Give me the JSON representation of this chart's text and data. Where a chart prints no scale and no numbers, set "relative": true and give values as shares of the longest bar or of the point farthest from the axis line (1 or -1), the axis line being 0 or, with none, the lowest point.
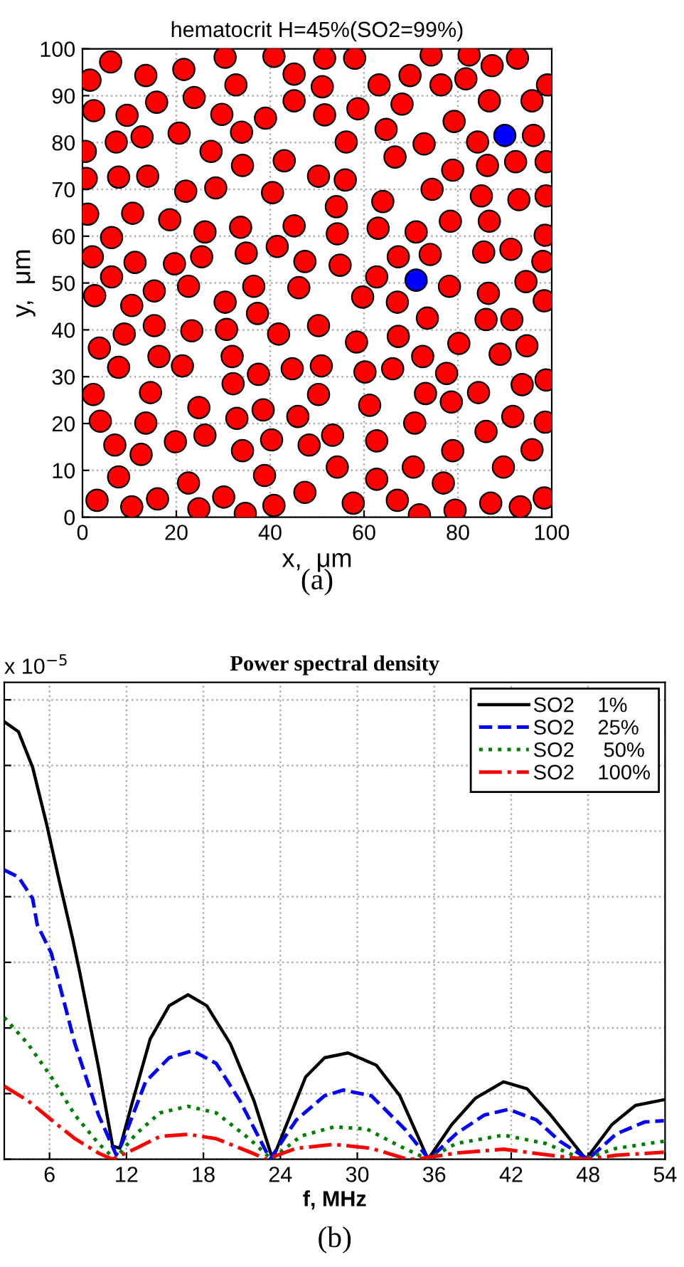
{
  "chart_data": [
    {
      "type": "scatter",
      "title": "hematocrit H=45%(SO2=99%)",
      "xlabel": "x,  μm",
      "ylabel": "y,  μm",
      "annotations": [
        "(a)"
      ],
      "xlim": [
        0,
        100
      ],
      "ylim": [
        0,
        100
      ],
      "xticks": [
        0,
        20,
        40,
        60,
        80,
        100
      ],
      "yticks": [
        0,
        10,
        20,
        30,
        40,
        50,
        60,
        70,
        80,
        90,
        100
      ],
      "grid": true,
      "marker": "circle",
      "series": [
        {
          "color": "#ff0000",
          "x": [
            1.6,
            6.0,
            13.5,
            21.6,
            30.4,
            40.8,
            45.1,
            51.6,
            58.0,
            63.2,
            69.8,
            74.3,
            76.4,
            82.4,
            81.7,
            87.3,
            92.7,
            99.1,
            32.7,
            51.1,
            2.4,
            9.5,
            15.8,
            23.8,
            29.7,
            39.0,
            45.1,
            51.6,
            58.7,
            68.1,
            86.7,
            95.8,
            79.2,
            0.6,
            7.2,
            12.7,
            20.6,
            33.9,
            27.4,
            56.2,
            64.7,
            72.8,
            84.2,
            96.1,
            98.8,
            92.3,
            86.3,
            78.9,
            66.6,
            43.0,
            34.1,
            0.8,
            7.7,
            13.9,
            22.0,
            28.4,
            40.5,
            50.3,
            56.0,
            74.5,
            85.0,
            93.0,
            98.8,
            64.0,
            54.1,
            1.1,
            10.7,
            18.6,
            26.1,
            33.7,
            45.1,
            54.3,
            63.0,
            71.1,
            78.4,
            86.7,
            98.6,
            6.2,
            2.1,
            11.2,
            19.6,
            25.4,
            34.9,
            41.5,
            47.4,
            54.9,
            67.3,
            74.1,
            85.5,
            91.3,
            98.1,
            6.2,
            62.7,
            94.5,
            78.2,
            2.6,
            22.6,
            36.5,
            46.1,
            59.7,
            67.1,
            86.5,
            98.4,
            15.3,
            10.5,
            30.4,
            37.3,
            50.3,
            73.5,
            86.0,
            91.5,
            8.9,
            15.3,
            23.3,
            30.7,
            41.8,
            58.4,
            67.3,
            80.2,
            94.7,
            3.6,
            16.3,
            31.9,
            72.5,
            89.0,
            7.7,
            21.3,
            37.5,
            44.7,
            50.9,
            60.2,
            66.1,
            77.6,
            98.8,
            93.7,
            2.3,
            14.5,
            32.1,
            50.3,
            61.2,
            73.1,
            78.6,
            84.4,
            24.8,
            38.5,
            3.8,
            13.5,
            32.9,
            45.9,
            70.8,
            86.0,
            91.7,
            98.6,
            6.9,
            12.5,
            19.8,
            26.1,
            34.1,
            40.3,
            48.3,
            53.3,
            62.7,
            78.9,
            95.8,
            7.7,
            22.6,
            38.8,
            54.3,
            62.7,
            70.5,
            76.9,
            89.7,
            3.1,
            10.5,
            16.0,
            24.8,
            30.1,
            34.7,
            40.8,
            47.4,
            57.7,
            67.1,
            71.8,
            79.4,
            87.0,
            93.3,
            98.4
          ],
          "values": [
            93.3,
            97.2,
            94.3,
            95.6,
            98.2,
            98.4,
            94.6,
            98.0,
            98.0,
            92.3,
            94.3,
            98.7,
            92.3,
            98.7,
            93.6,
            96.4,
            98.0,
            92.3,
            92.3,
            91.9,
            86.8,
            85.8,
            88.6,
            89.6,
            86.0,
            85.2,
            88.9,
            85.9,
            87.2,
            88.2,
            88.9,
            88.9,
            84.5,
            78.1,
            80.1,
            81.2,
            82.0,
            82.2,
            78.1,
            80.1,
            82.8,
            79.7,
            80.1,
            81.5,
            75.9,
            75.9,
            75.1,
            74.1,
            76.9,
            76.1,
            75.1,
            72.3,
            72.6,
            72.8,
            69.6,
            70.3,
            69.3,
            72.8,
            72.0,
            70.0,
            68.6,
            67.8,
            68.6,
            67.4,
            66.3,
            64.7,
            64.9,
            63.5,
            60.9,
            61.9,
            62.2,
            60.5,
            61.7,
            60.9,
            63.2,
            63.2,
            60.2,
            59.7,
            55.6,
            54.4,
            54.1,
            55.6,
            56.4,
            57.8,
            54.6,
            53.8,
            55.6,
            56.1,
            56.6,
            57.2,
            54.6,
            51.3,
            51.3,
            50.3,
            49.3,
            47.3,
            49.3,
            49.3,
            49.0,
            47.0,
            45.9,
            47.8,
            46.2,
            48.3,
            45.2,
            45.9,
            43.5,
            40.9,
            42.5,
            42.2,
            42.2,
            39.1,
            40.9,
            39.8,
            40.1,
            39.1,
            37.4,
            38.6,
            37.1,
            36.6,
            36.1,
            34.3,
            34.3,
            34.3,
            34.8,
            32.0,
            32.3,
            30.5,
            31.7,
            32.3,
            31.0,
            31.7,
            30.7,
            29.3,
            28.3,
            26.2,
            26.6,
            28.5,
            26.2,
            23.9,
            26.4,
            24.6,
            26.6,
            23.4,
            22.9,
            20.5,
            20.1,
            21.1,
            21.5,
            20.1,
            18.3,
            21.5,
            20.3,
            15.4,
            13.4,
            16.1,
            17.5,
            14.2,
            16.5,
            15.4,
            17.5,
            16.3,
            14.2,
            14.4,
            8.6,
            7.3,
            8.9,
            10.7,
            8.1,
            10.7,
            7.3,
            10.7,
            3.6,
            2.2,
            3.9,
            1.8,
            4.3,
            0.8,
            2.5,
            5.3,
            3.0,
            3.6,
            0.5,
            1.5,
            3.0,
            2.2,
            4.1
          ]
        },
        {
          "color": "#0000ff",
          "x": [
            90.0,
            71.1
          ],
          "values": [
            81.5,
            50.6
          ]
        }
      ]
    },
    {
      "type": "line",
      "title": "Power spectral density",
      "xlabel": "f, MHz",
      "annotations": [
        "x 10$^{−5}$",
        "(b)"
      ],
      "relative": true,
      "xlim": [
        2.47,
        54
      ],
      "xticks": [
        6,
        12,
        18,
        24,
        30,
        36,
        42,
        48,
        54
      ],
      "grid": true,
      "legend": "top right",
      "tick_labels": "x",
      "marker": "none",
      "series": [
        {
          "name": "SO2    1%",
          "color": "#000000",
          "line_style": "solid",
          "x": [
            2.47,
            3.58,
            4.68,
            5.78,
            6.69,
            7.8,
            8.35,
            9.82,
            10.92,
            11.48,
            12.39,
            13.85,
            15.33,
            16.8,
            18.26,
            20.1,
            21.94,
            23.4,
            25.97,
            27.45,
            29.28,
            31.48,
            33.32,
            35.52,
            37.36,
            39.19,
            41.4,
            43.24,
            45.08,
            47.83,
            49.85,
            51.69,
            53.89
          ],
          "values": [
            1.0,
            0.977,
            0.896,
            0.765,
            0.645,
            0.504,
            0.428,
            0.21,
            0.03,
            0.025,
            0.123,
            0.275,
            0.351,
            0.376,
            0.351,
            0.264,
            0.134,
            0.0,
            0.188,
            0.232,
            0.243,
            0.215,
            0.145,
            0.0,
            0.079,
            0.139,
            0.177,
            0.161,
            0.101,
            0.0,
            0.079,
            0.123,
            0.136
          ]
        },
        {
          "name": "SO2    25%",
          "color": "#0000ff",
          "line_style": "dashed",
          "x": [
            2.47,
            3.58,
            4.68,
            5.04,
            6.14,
            7.98,
            9.82,
            11.2,
            11.65,
            13.49,
            15.33,
            17.16,
            19.0,
            20.84,
            23.2,
            25.25,
            27.45,
            28.9,
            31.1,
            33.7,
            35.6,
            37.7,
            39.9,
            41.8,
            43.97,
            45.8,
            48.0,
            50.2,
            52.4,
            53.9
          ],
          "values": [
            0.661,
            0.645,
            0.596,
            0.536,
            0.471,
            0.264,
            0.101,
            0.01,
            0.036,
            0.177,
            0.232,
            0.248,
            0.219,
            0.134,
            0.0,
            0.09,
            0.145,
            0.158,
            0.145,
            0.069,
            0.0,
            0.058,
            0.101,
            0.114,
            0.09,
            0.041,
            0.0,
            0.058,
            0.085,
            0.088
          ]
        },
        {
          "name": "SO2     50%",
          "color": "#008000",
          "line_style": "dotted",
          "x": [
            2.47,
            4.31,
            6.14,
            7.98,
            9.82,
            11.1,
            12.75,
            14.6,
            16.8,
            19.0,
            21.57,
            23.3,
            25.6,
            28.2,
            30.75,
            33.3,
            35.5,
            37.7,
            41.4,
            44.7,
            47.6,
            50.2,
            53.9
          ],
          "values": [
            0.324,
            0.264,
            0.188,
            0.101,
            0.036,
            0.0,
            0.058,
            0.106,
            0.121,
            0.106,
            0.047,
            0.0,
            0.053,
            0.074,
            0.069,
            0.03,
            0.0,
            0.036,
            0.055,
            0.036,
            0.0,
            0.025,
            0.041
          ]
        },
        {
          "name": "SO2    100%",
          "color": "#ff0000",
          "line_style": "dashdot",
          "x": [
            2.47,
            4.31,
            6.14,
            7.98,
            9.82,
            10.9,
            12.75,
            14.6,
            16.8,
            19.0,
            21.9,
            22.9,
            25.25,
            28.2,
            31.1,
            33.9,
            34.6,
            37.7,
            41.4,
            45.08,
            47.8,
            50.2,
            53.9
          ],
          "values": [
            0.167,
            0.134,
            0.09,
            0.047,
            0.014,
            0.0,
            0.025,
            0.052,
            0.057,
            0.047,
            0.013,
            0.0,
            0.025,
            0.034,
            0.025,
            0.0,
            0.0,
            0.014,
            0.023,
            0.009,
            0.0,
            0.009,
            0.016
          ]
        }
      ]
    }
  ]
}
